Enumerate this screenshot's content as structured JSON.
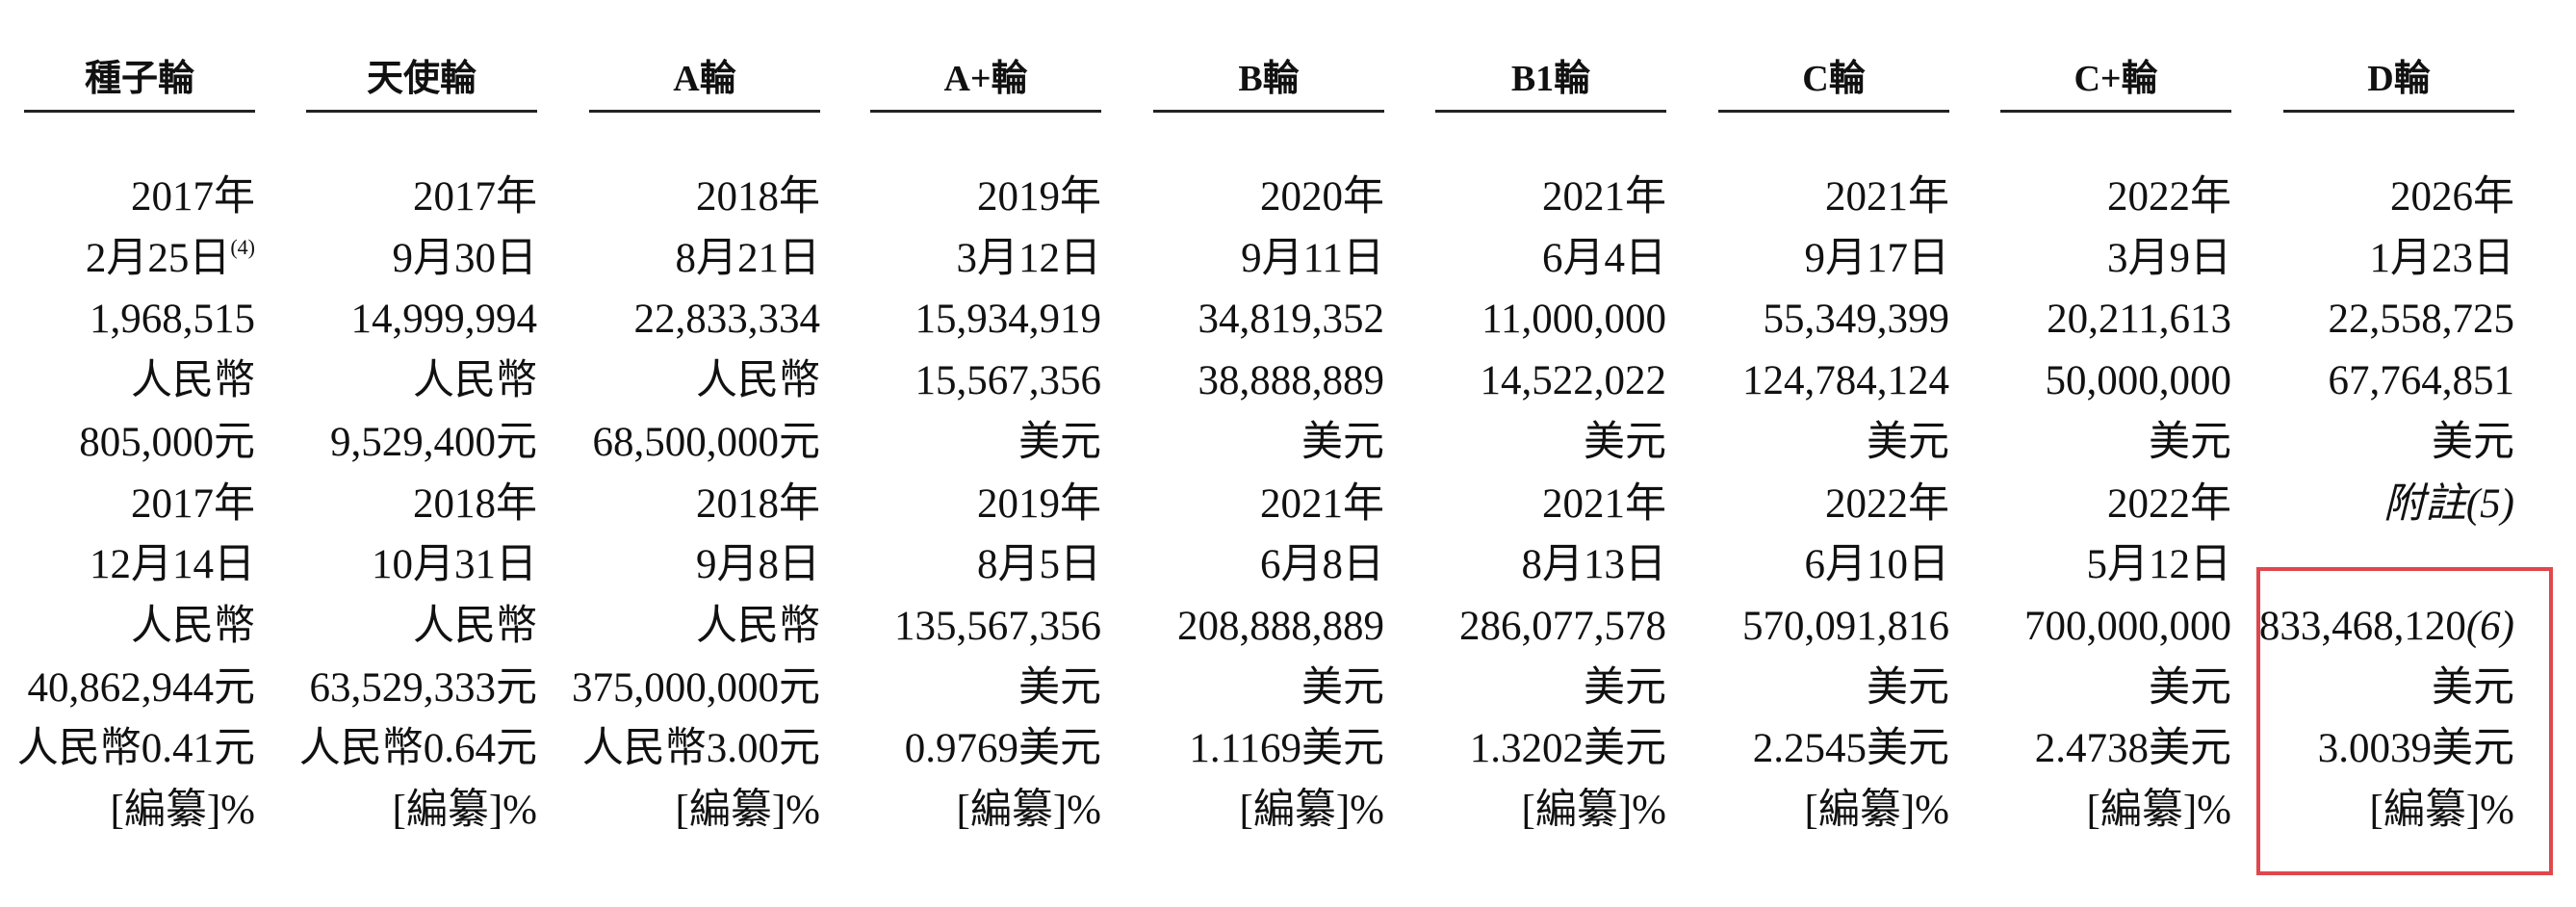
{
  "table": {
    "columns": [
      {
        "header": "種子輪",
        "cells": [
          "2017年",
          {
            "text": "2月25日",
            "sup": "(4)"
          },
          "1,968,515",
          "人民幣",
          "805,000元",
          "2017年",
          "12月14日",
          "人民幣",
          "40,862,944元",
          "人民幣0.41元",
          "[編纂]%"
        ]
      },
      {
        "header": "天使輪",
        "cells": [
          "2017年",
          "9月30日",
          "14,999,994",
          "人民幣",
          "9,529,400元",
          "2018年",
          "10月31日",
          "人民幣",
          "63,529,333元",
          "人民幣0.64元",
          "[編纂]%"
        ]
      },
      {
        "header": "A輪",
        "cells": [
          "2018年",
          "8月21日",
          "22,833,334",
          "人民幣",
          "68,500,000元",
          "2018年",
          "9月8日",
          "人民幣",
          "375,000,000元",
          "人民幣3.00元",
          "[編纂]%"
        ]
      },
      {
        "header": "A+輪",
        "cells": [
          "2019年",
          "3月12日",
          "15,934,919",
          "15,567,356",
          "美元",
          "2019年",
          "8月5日",
          "135,567,356",
          "美元",
          "0.9769美元",
          "[編纂]%"
        ]
      },
      {
        "header": "B輪",
        "cells": [
          "2020年",
          "9月11日",
          "34,819,352",
          "38,888,889",
          "美元",
          "2021年",
          "6月8日",
          "208,888,889",
          "美元",
          "1.1169美元",
          "[編纂]%"
        ]
      },
      {
        "header": "B1輪",
        "cells": [
          "2021年",
          "6月4日",
          "11,000,000",
          "14,522,022",
          "美元",
          "2021年",
          "8月13日",
          "286,077,578",
          "美元",
          "1.3202美元",
          "[編纂]%"
        ]
      },
      {
        "header": "C輪",
        "cells": [
          "2021年",
          "9月17日",
          "55,349,399",
          "124,784,124",
          "美元",
          "2022年",
          "6月10日",
          "570,091,816",
          "美元",
          "2.2545美元",
          "[編纂]%"
        ]
      },
      {
        "header": "C+輪",
        "cells": [
          "2022年",
          "3月9日",
          "20,211,613",
          "50,000,000",
          "美元",
          "2022年",
          "5月12日",
          "700,000,000",
          "美元",
          "2.4738美元",
          "[編纂]%"
        ]
      },
      {
        "header": "D輪",
        "cells": [
          "2026年",
          "1月23日",
          "22,558,725",
          "67,764,851",
          "美元",
          {
            "text": "附註(5)",
            "italic": true
          },
          null,
          {
            "text": "833,468,120",
            "note": "(6)"
          },
          "美元",
          "3.0039美元",
          "[編纂]%"
        ]
      }
    ]
  }
}
